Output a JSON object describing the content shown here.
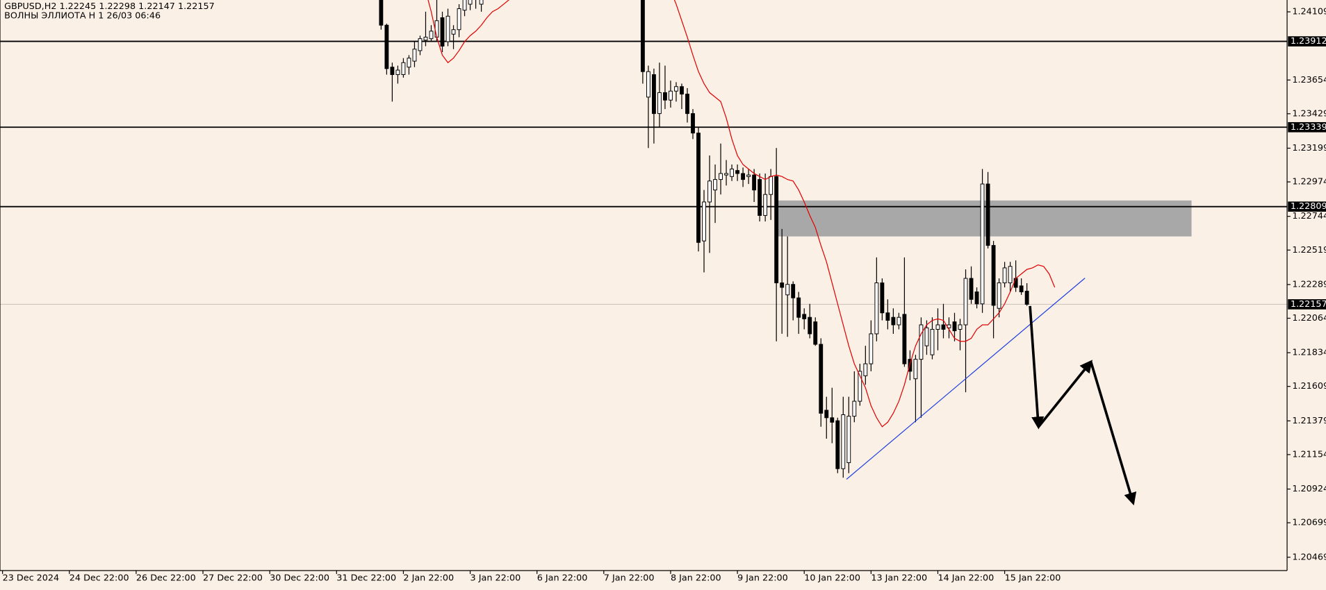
{
  "chart_data": {
    "type": "candlestick",
    "title": "GBPUSD,H2  1.22245 1.22298 1.22147 1.22157",
    "subtitle": "ВОЛНЫ ЭЛЛИОТА H 1 26/03 06:46",
    "categories": [
      "23 Dec 2024",
      "24 Dec 22:00",
      "26 Dec 22:00",
      "27 Dec 22:00",
      "30 Dec 22:00",
      "31 Dec 22:00",
      "2 Jan 22:00",
      "3 Jan 22:00",
      "6 Jan 22:00",
      "7 Jan 22:00",
      "8 Jan 22:00",
      "9 Jan 22:00",
      "10 Jan 22:00",
      "13 Jan 22:00",
      "14 Jan 22:00",
      "15 Jan 22:00"
    ],
    "open": [
      1.2425,
      1.2402,
      1.2374,
      1.2369,
      1.2369,
      1.2374,
      1.2378,
      1.2385,
      1.2392,
      1.2393,
      1.2394,
      1.2407,
      1.2391,
      1.2396,
      1.2399,
      1.2412,
      1.2416,
      1.2422,
      1.2416,
      null,
      null,
      null,
      null,
      null,
      null,
      null,
      null,
      null,
      null,
      null,
      null,
      null,
      null,
      null,
      null,
      null,
      null,
      null,
      null,
      null,
      null,
      null,
      null,
      null,
      null,
      null,
      null,
      1.2425,
      1.2354,
      1.2369,
      1.2343,
      1.2357,
      1.2352,
      1.2358,
      1.2361,
      1.2356,
      1.2343,
      1.233,
      1.2258,
      1.2284,
      1.2292,
      1.2299,
      1.2302,
      1.2301,
      1.2305,
      1.2303,
      1.2301,
      1.2302,
      1.2299,
      1.2275,
      1.2289,
      1.2301,
      1.223,
      1.2222,
      1.2229,
      1.222,
      1.2209,
      1.2207,
      1.2204,
      1.2189,
      1.2145,
      1.214,
      1.2138,
      1.2106,
      1.211,
      1.2141,
      1.2151,
      1.2168,
      1.2176,
      1.2196,
      1.223,
      1.221,
      1.2207,
      1.2202,
      1.2209,
      1.2179,
      1.2166,
      1.2179,
      1.2188,
      1.2182,
      1.2199,
      1.2202,
      1.22,
      1.2204,
      1.2199,
      1.2202,
      1.2233,
      1.2224,
      1.2216,
      1.2296,
      1.2255,
      1.2213,
      1.223,
      1.223,
      1.2233,
      1.2228,
      1.22245
    ],
    "high": [
      1.243,
      1.2403,
      1.2377,
      1.2375,
      1.238,
      1.2382,
      1.2391,
      1.2395,
      1.2411,
      1.2402,
      1.2419,
      1.2411,
      1.2413,
      1.2402,
      1.2416,
      1.2425,
      1.2425,
      1.243,
      1.2425,
      null,
      null,
      null,
      null,
      null,
      null,
      null,
      null,
      null,
      null,
      null,
      null,
      null,
      null,
      null,
      null,
      null,
      null,
      null,
      null,
      null,
      null,
      null,
      null,
      null,
      null,
      null,
      null,
      1.243,
      1.2375,
      1.2373,
      1.2377,
      1.2375,
      1.2365,
      1.2364,
      1.2363,
      1.236,
      1.2346,
      1.2334,
      1.2292,
      1.2315,
      1.2309,
      1.2323,
      1.2312,
      1.2309,
      1.2309,
      1.2307,
      1.2306,
      1.2306,
      1.2303,
      1.2303,
      1.2306,
      1.232,
      1.2266,
      1.2261,
      1.2231,
      1.2224,
      1.2213,
      1.2216,
      1.2207,
      1.2193,
      1.2154,
      1.216,
      1.214,
      1.2154,
      1.2154,
      1.2171,
      1.2176,
      1.2188,
      1.2205,
      1.2247,
      1.2233,
      1.2219,
      1.2213,
      1.221,
      1.2247,
      1.2185,
      1.2182,
      1.2207,
      1.2205,
      1.2207,
      1.2213,
      1.2216,
      1.2207,
      1.221,
      1.2206,
      1.2239,
      1.2241,
      1.2227,
      1.2306,
      1.2304,
      1.2258,
      1.2233,
      1.2244,
      1.2244,
      1.2245,
      1.2233,
      1.22298
    ],
    "low": [
      1.2399,
      1.2369,
      1.2351,
      1.2363,
      1.2367,
      1.2369,
      1.2374,
      1.2382,
      1.2388,
      1.2391,
      1.2391,
      1.2384,
      1.2388,
      1.2386,
      1.2394,
      1.2408,
      1.2412,
      1.2413,
      1.2411,
      null,
      null,
      null,
      null,
      null,
      null,
      null,
      null,
      null,
      null,
      null,
      null,
      null,
      null,
      null,
      null,
      null,
      null,
      null,
      null,
      null,
      null,
      null,
      null,
      null,
      null,
      null,
      null,
      1.2363,
      1.232,
      1.2323,
      1.2334,
      1.2346,
      1.2347,
      1.2351,
      1.2346,
      1.2337,
      1.2326,
      1.2251,
      1.2237,
      1.225,
      1.227,
      1.2289,
      1.2295,
      1.2298,
      1.2298,
      1.2294,
      1.2296,
      1.2284,
      1.2271,
      1.2271,
      1.2272,
      1.2191,
      1.2196,
      1.2194,
      1.2205,
      1.2196,
      1.2199,
      1.2193,
      1.2188,
      1.2134,
      1.2126,
      1.2123,
      1.2103,
      1.21,
      1.2103,
      1.2137,
      1.2148,
      1.2162,
      1.2171,
      1.2191,
      1.2205,
      1.2199,
      1.2196,
      1.2199,
      1.2174,
      1.2165,
      1.2137,
      1.214,
      1.2182,
      1.2179,
      1.2185,
      1.2193,
      1.2193,
      1.2191,
      1.2185,
      1.2157,
      1.2216,
      1.2213,
      1.221,
      1.2253,
      1.2193,
      1.2207,
      1.2227,
      1.2224,
      1.2224,
      1.2222,
      1.22147
    ],
    "close": [
      1.2402,
      1.2373,
      1.2369,
      1.2372,
      1.2377,
      1.238,
      1.2386,
      1.2393,
      1.2394,
      1.2398,
      1.2405,
      1.2388,
      1.2408,
      1.2399,
      1.2413,
      1.242,
      1.2422,
      1.2425,
      1.2419,
      null,
      null,
      null,
      null,
      null,
      null,
      null,
      null,
      null,
      null,
      null,
      null,
      null,
      null,
      null,
      null,
      null,
      null,
      null,
      null,
      null,
      null,
      null,
      null,
      null,
      null,
      null,
      null,
      1.2371,
      1.2371,
      1.2343,
      1.2357,
      1.2352,
      1.2358,
      1.2361,
      1.2356,
      1.2343,
      1.233,
      1.2257,
      1.2284,
      1.2298,
      1.2299,
      1.2303,
      1.2303,
      1.2306,
      1.2303,
      1.2299,
      1.2302,
      1.2292,
      1.2275,
      1.2289,
      1.2301,
      1.223,
      1.2227,
      1.2229,
      1.222,
      1.2207,
      1.2206,
      1.2196,
      1.2189,
      1.2143,
      1.214,
      1.2137,
      1.2106,
      1.2142,
      1.2141,
      1.2151,
      1.2171,
      1.2176,
      1.2196,
      1.223,
      1.221,
      1.2205,
      1.2202,
      1.2207,
      1.2176,
      1.2171,
      1.2179,
      1.2202,
      1.22,
      1.2199,
      1.2202,
      1.2199,
      1.2202,
      1.2198,
      1.2202,
      1.2233,
      1.2219,
      1.2216,
      1.2296,
      1.2255,
      1.2215,
      1.223,
      1.224,
      1.2241,
      1.2227,
      1.2224,
      1.22157
    ],
    "color_up": "#ffffff",
    "color_down": "#000000",
    "ma": {
      "color": "#e00000",
      "values": [
        null,
        null,
        null,
        null,
        null,
        null,
        null,
        null,
        1.2425,
        1.2411,
        1.2394,
        1.2382,
        1.2377,
        1.238,
        1.2385,
        1.2391,
        1.2395,
        1.2398,
        1.2402,
        1.2407,
        1.2411,
        1.2413,
        1.2416,
        1.2419,
        1.2422,
        null,
        null,
        null,
        null,
        null,
        null,
        null,
        null,
        null,
        null,
        null,
        null,
        null,
        null,
        null,
        null,
        null,
        null,
        null,
        null,
        null,
        null,
        null,
        null,
        null,
        null,
        null,
        1.2425,
        1.2416,
        1.2405,
        1.2394,
        1.2382,
        1.2371,
        1.2363,
        1.2357,
        1.2354,
        1.2351,
        1.234,
        1.2326,
        1.2315,
        1.2309,
        1.2306,
        1.2303,
        1.2301,
        1.2299,
        1.2301,
        1.2302,
        1.2301,
        1.2299,
        1.2298,
        1.2292,
        1.2284,
        1.2275,
        1.2267,
        1.2255,
        1.2244,
        1.223,
        1.2216,
        1.2202,
        1.2188,
        1.2176,
        1.2168,
        1.216,
        1.2148,
        1.214,
        1.2134,
        1.2137,
        1.2143,
        1.2151,
        1.2162,
        1.2176,
        1.2188,
        1.2196,
        1.2202,
        1.2205,
        1.2206,
        1.2205,
        1.2199,
        1.2193,
        1.2191,
        1.2191,
        1.2193,
        1.2199,
        1.2202,
        1.2202,
        1.2206,
        1.221,
        1.2216,
        1.2224,
        1.2233,
        1.2236,
        1.2239,
        1.224,
        1.2242,
        1.2241,
        1.2236,
        1.2227
      ]
    },
    "ylim": [
      1.2038,
      1.24188
    ],
    "yticks": [
      1.24109,
      1.23654,
      1.23429,
      1.23199,
      1.22974,
      1.22744,
      1.22519,
      1.22289,
      1.22064,
      1.21834,
      1.21609,
      1.21379,
      1.21154,
      1.20924,
      1.20699,
      1.20469
    ],
    "levels": [
      1.23912,
      1.23339,
      1.22809
    ],
    "last_price": 1.22157,
    "zone": {
      "top": 1.2285,
      "bottom": 1.2261,
      "color": "#a8a8a8"
    }
  }
}
